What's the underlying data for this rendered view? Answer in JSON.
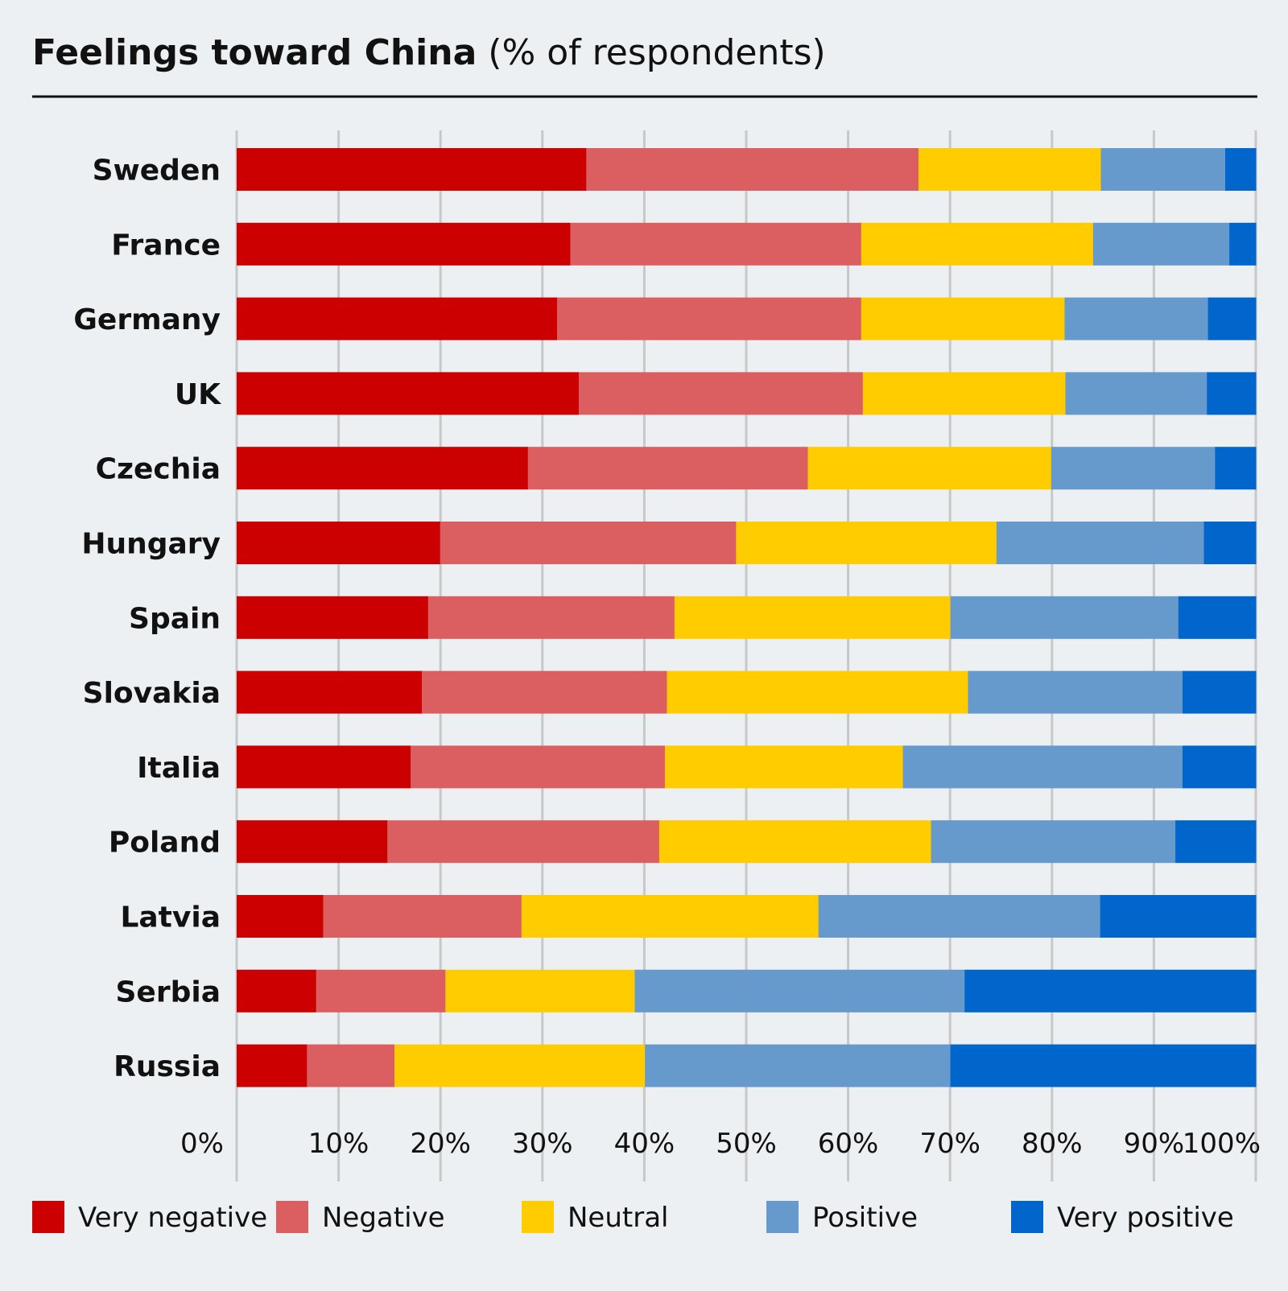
{
  "chart_data": {
    "type": "bar",
    "orientation": "horizontal",
    "stacked": true,
    "title": "Feelings toward China",
    "subtitle": "(% of respondents)",
    "xlabel": "",
    "ylabel": "",
    "xlim": [
      0,
      100
    ],
    "grid": true,
    "legend_position": "bottom",
    "x_ticks": [
      "0%",
      "10%",
      "20%",
      "30%",
      "40%",
      "50%",
      "60%",
      "70%",
      "80%",
      "90%",
      "100%"
    ],
    "categories": [
      "Sweden",
      "France",
      "Germany",
      "UK",
      "Czechia",
      "Hungary",
      "Spain",
      "Slovakia",
      "Italia",
      "Poland",
      "Latvia",
      "Serbia",
      "Russia"
    ],
    "series": [
      {
        "name": "Very negative",
        "color": "#cc0000",
        "values": [
          34.3,
          32.8,
          31.5,
          33.6,
          28.6,
          20.0,
          18.8,
          18.2,
          17.1,
          14.8,
          8.5,
          7.8,
          6.9
        ]
      },
      {
        "name": "Negative",
        "color": "#db5f61",
        "values": [
          32.6,
          28.6,
          29.9,
          27.9,
          27.5,
          29.1,
          24.2,
          24.1,
          25.0,
          26.7,
          19.5,
          12.7,
          8.6
        ]
      },
      {
        "name": "Neutral",
        "color": "#ffcc00",
        "values": [
          17.9,
          22.8,
          20.0,
          19.9,
          23.9,
          25.6,
          27.1,
          29.6,
          23.4,
          26.7,
          29.2,
          18.6,
          24.6
        ]
      },
      {
        "name": "Positive",
        "color": "#6699cc",
        "values": [
          12.2,
          13.4,
          14.1,
          13.9,
          16.1,
          20.4,
          22.4,
          21.1,
          27.5,
          24.0,
          27.7,
          32.4,
          30.0
        ]
      },
      {
        "name": "Very positive",
        "color": "#0066cc",
        "values": [
          3.0,
          2.6,
          4.7,
          4.8,
          4.0,
          5.1,
          7.6,
          7.2,
          7.2,
          7.9,
          15.3,
          28.6,
          30.0
        ]
      }
    ]
  }
}
